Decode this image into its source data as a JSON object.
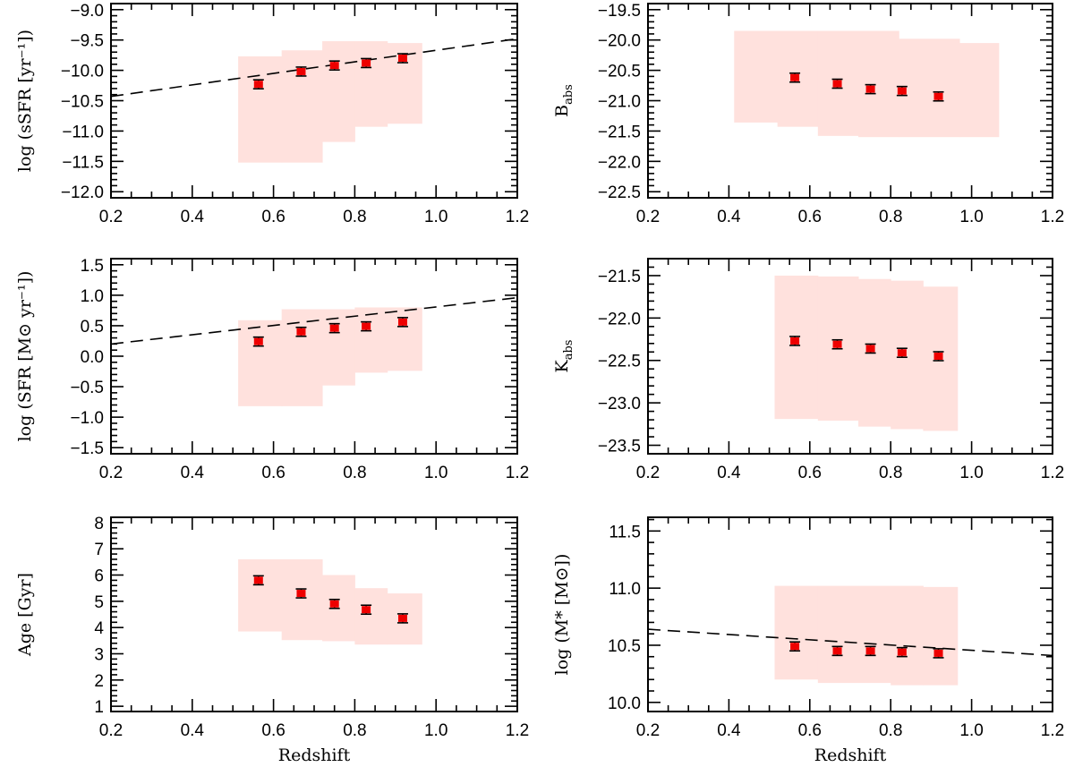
{
  "chart_data": [
    {
      "id": "ssfr",
      "type": "scatter",
      "ylabel": "log (sSFR [yr⁻¹])",
      "xlabel": "",
      "xlim": [
        0.2,
        1.2
      ],
      "ylim": [
        -12.1,
        -8.9
      ],
      "xticks": [
        "0.2",
        "0.4",
        "0.6",
        "0.8",
        "1.0",
        "1.2"
      ],
      "yticks": [
        "-12.0",
        "-11.5",
        "-11.0",
        "-10.5",
        "-10.0",
        "-9.5",
        "-9.0"
      ],
      "x": [
        0.563,
        0.668,
        0.75,
        0.828,
        0.918
      ],
      "y": [
        -10.23,
        -10.02,
        -9.92,
        -9.88,
        -9.8
      ],
      "yerr": [
        0.05,
        0.05,
        0.04,
        0.04,
        0.04
      ],
      "range_band": [
        {
          "x0": 0.513,
          "x1": 0.62,
          "lo": -11.52,
          "hi": -9.77
        },
        {
          "x0": 0.62,
          "x1": 0.72,
          "lo": -11.52,
          "hi": -9.67
        },
        {
          "x0": 0.72,
          "x1": 0.8,
          "lo": -11.18,
          "hi": -9.52
        },
        {
          "x0": 0.8,
          "x1": 0.88,
          "lo": -10.93,
          "hi": -9.52
        },
        {
          "x0": 0.88,
          "x1": 0.965,
          "lo": -10.88,
          "hi": -9.55
        }
      ],
      "trend_line": {
        "x": [
          0.2,
          1.2
        ],
        "y": [
          -10.43,
          -9.48
        ]
      }
    },
    {
      "id": "babs",
      "type": "scatter",
      "ylabel": "B_abs",
      "xlabel": "",
      "xlim": [
        0.2,
        1.2
      ],
      "ylim": [
        -22.6,
        -19.4
      ],
      "xticks": [
        "0.2",
        "0.4",
        "0.6",
        "0.8",
        "1.0",
        "1.2"
      ],
      "yticks": [
        "-22.5",
        "-22.0",
        "-21.5",
        "-21.0",
        "-20.5",
        "-20.0",
        "-19.5"
      ],
      "x": [
        0.563,
        0.668,
        0.75,
        0.828,
        0.918
      ],
      "y": [
        -20.62,
        -20.72,
        -20.81,
        -20.84,
        -20.93
      ],
      "yerr": [
        0.06,
        0.06,
        0.06,
        0.06,
        0.06
      ],
      "range_band": [
        {
          "x0": 0.413,
          "x1": 0.52,
          "lo": -21.36,
          "hi": -19.85
        },
        {
          "x0": 0.52,
          "x1": 0.62,
          "lo": -21.43,
          "hi": -19.85
        },
        {
          "x0": 0.62,
          "x1": 0.72,
          "lo": -21.58,
          "hi": -19.85
        },
        {
          "x0": 0.72,
          "x1": 0.82,
          "lo": -21.6,
          "hi": -19.85
        },
        {
          "x0": 0.82,
          "x1": 0.97,
          "lo": -21.6,
          "hi": -19.98
        },
        {
          "x0": 0.97,
          "x1": 1.067,
          "lo": -21.6,
          "hi": -20.05
        }
      ]
    },
    {
      "id": "sfr",
      "type": "scatter",
      "ylabel": "log (SFR [M⊙ yr⁻¹])",
      "xlabel": "",
      "xlim": [
        0.2,
        1.2
      ],
      "ylim": [
        -1.6,
        1.6
      ],
      "xticks": [
        "0.2",
        "0.4",
        "0.6",
        "0.8",
        "1.0",
        "1.2"
      ],
      "yticks": [
        "-1.5",
        "-1.0",
        "-0.5",
        "0.0",
        "0.5",
        "1.0",
        "1.5"
      ],
      "x": [
        0.563,
        0.668,
        0.75,
        0.828,
        0.918
      ],
      "y": [
        0.24,
        0.4,
        0.46,
        0.49,
        0.56
      ],
      "yerr": [
        0.04,
        0.04,
        0.04,
        0.04,
        0.04
      ],
      "range_band": [
        {
          "x0": 0.513,
          "x1": 0.62,
          "lo": -0.82,
          "hi": 0.59
        },
        {
          "x0": 0.62,
          "x1": 0.72,
          "lo": -0.82,
          "hi": 0.77
        },
        {
          "x0": 0.72,
          "x1": 0.8,
          "lo": -0.48,
          "hi": 0.77
        },
        {
          "x0": 0.8,
          "x1": 0.88,
          "lo": -0.27,
          "hi": 0.8
        },
        {
          "x0": 0.88,
          "x1": 0.965,
          "lo": -0.24,
          "hi": 0.8
        }
      ],
      "trend_line": {
        "x": [
          0.2,
          1.2
        ],
        "y": [
          0.2,
          0.96
        ]
      }
    },
    {
      "id": "kabs",
      "type": "scatter",
      "ylabel": "K_abs",
      "xlabel": "",
      "xlim": [
        0.2,
        1.2
      ],
      "ylim": [
        -23.6,
        -21.3
      ],
      "xticks": [
        "0.2",
        "0.4",
        "0.6",
        "0.8",
        "1.0",
        "1.2"
      ],
      "yticks": [
        "-23.5",
        "-23.0",
        "-22.5",
        "-22.0",
        "-21.5"
      ],
      "x": [
        0.563,
        0.668,
        0.75,
        0.828,
        0.918
      ],
      "y": [
        -22.27,
        -22.31,
        -22.36,
        -22.41,
        -22.45
      ],
      "yerr": [
        0.04,
        0.04,
        0.04,
        0.04,
        0.04
      ],
      "range_band": [
        {
          "x0": 0.513,
          "x1": 0.62,
          "lo": -23.19,
          "hi": -21.5
        },
        {
          "x0": 0.62,
          "x1": 0.72,
          "lo": -23.21,
          "hi": -21.51
        },
        {
          "x0": 0.72,
          "x1": 0.8,
          "lo": -23.28,
          "hi": -21.54
        },
        {
          "x0": 0.8,
          "x1": 0.88,
          "lo": -23.31,
          "hi": -21.56
        },
        {
          "x0": 0.88,
          "x1": 0.965,
          "lo": -23.33,
          "hi": -21.63
        }
      ]
    },
    {
      "id": "age",
      "type": "scatter",
      "ylabel": "Age [Gyr]",
      "xlabel": "Redshift",
      "xlim": [
        0.2,
        1.2
      ],
      "ylim": [
        0.8,
        8.2
      ],
      "xticks": [
        "0.2",
        "0.4",
        "0.6",
        "0.8",
        "1.0",
        "1.2"
      ],
      "yticks": [
        "1",
        "2",
        "3",
        "4",
        "5",
        "6",
        "7",
        "8"
      ],
      "x": [
        0.563,
        0.668,
        0.75,
        0.828,
        0.918
      ],
      "y": [
        5.8,
        5.3,
        4.9,
        4.68,
        4.35
      ],
      "yerr": [
        0.08,
        0.08,
        0.08,
        0.08,
        0.08
      ],
      "range_band": [
        {
          "x0": 0.513,
          "x1": 0.62,
          "lo": 3.85,
          "hi": 6.6
        },
        {
          "x0": 0.62,
          "x1": 0.72,
          "lo": 3.52,
          "hi": 6.6
        },
        {
          "x0": 0.72,
          "x1": 0.8,
          "lo": 3.48,
          "hi": 6.0
        },
        {
          "x0": 0.8,
          "x1": 0.88,
          "lo": 3.35,
          "hi": 5.5
        },
        {
          "x0": 0.88,
          "x1": 0.965,
          "lo": 3.35,
          "hi": 5.3
        }
      ]
    },
    {
      "id": "mass",
      "type": "scatter",
      "ylabel": "log (M* [M⊙])",
      "xlabel": "Redshift",
      "xlim": [
        0.2,
        1.2
      ],
      "ylim": [
        9.92,
        11.62
      ],
      "xticks": [
        "0.2",
        "0.4",
        "0.6",
        "0.8",
        "1.0",
        "1.2"
      ],
      "yticks": [
        "10.0",
        "10.5",
        "11.0",
        "11.5"
      ],
      "x": [
        0.563,
        0.668,
        0.75,
        0.828,
        0.918
      ],
      "y": [
        10.49,
        10.45,
        10.45,
        10.44,
        10.43
      ],
      "yerr": [
        0.02,
        0.02,
        0.02,
        0.02,
        0.02
      ],
      "range_band": [
        {
          "x0": 0.513,
          "x1": 0.62,
          "lo": 10.2,
          "hi": 11.02
        },
        {
          "x0": 0.62,
          "x1": 0.72,
          "lo": 10.17,
          "hi": 11.02
        },
        {
          "x0": 0.72,
          "x1": 0.8,
          "lo": 10.17,
          "hi": 11.02
        },
        {
          "x0": 0.8,
          "x1": 0.88,
          "lo": 10.15,
          "hi": 11.02
        },
        {
          "x0": 0.88,
          "x1": 0.965,
          "lo": 10.15,
          "hi": 11.01
        }
      ],
      "trend_line": {
        "x": [
          0.2,
          1.2
        ],
        "y": [
          10.64,
          10.41
        ]
      }
    }
  ]
}
